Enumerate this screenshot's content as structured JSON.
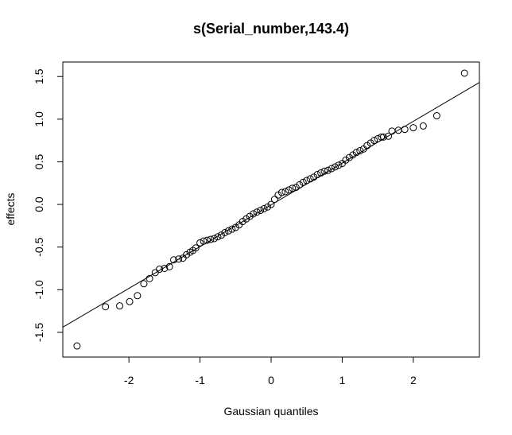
{
  "chart_data": {
    "type": "scatter",
    "title": "s(Serial_number,143.4)",
    "x_label": "Gaussian quantiles",
    "y_label": "effects",
    "xlim": [
      -2.93,
      2.93
    ],
    "ylim": [
      -1.79,
      1.67
    ],
    "xticks": [
      -2,
      -1,
      0,
      1,
      2
    ],
    "yticks": [
      -1.5,
      {
        "value": -1,
        "label": "-1.0"
      },
      -0.5,
      {
        "value": 0,
        "label": "0.0"
      },
      0.5,
      {
        "value": 1,
        "label": "1.0"
      },
      1.5
    ],
    "point_color": "#000000",
    "x": [
      -2.73,
      -2.33,
      -2.13,
      -1.99,
      -1.88,
      -1.79,
      -1.71,
      -1.63,
      -1.57,
      -1.5,
      -1.43,
      -1.37,
      -1.3,
      -1.24,
      -1.19,
      -1.14,
      -1.1,
      -1.06,
      -1.0,
      -0.95,
      -0.9,
      -0.85,
      -0.8,
      -0.75,
      -0.7,
      -0.65,
      -0.6,
      -0.55,
      -0.5,
      -0.45,
      -0.4,
      -0.35,
      -0.3,
      -0.25,
      -0.2,
      -0.15,
      -0.1,
      -0.05,
      0,
      0.05,
      0.1,
      0.15,
      0.2,
      0.25,
      0.3,
      0.35,
      0.4,
      0.45,
      0.5,
      0.55,
      0.6,
      0.65,
      0.7,
      0.75,
      0.8,
      0.85,
      0.9,
      0.95,
      1.0,
      1.05,
      1.1,
      1.15,
      1.2,
      1.25,
      1.3,
      1.35,
      1.4,
      1.45,
      1.5,
      1.55,
      1.58,
      1.65,
      1.7,
      1.79,
      1.88,
      2.0,
      2.14,
      2.33,
      2.72
    ],
    "values": [
      -1.66,
      -1.2,
      -1.19,
      -1.14,
      -1.07,
      -0.93,
      -0.87,
      -0.8,
      -0.76,
      -0.75,
      -0.73,
      -0.65,
      -0.64,
      -0.63,
      -0.59,
      -0.56,
      -0.54,
      -0.51,
      -0.45,
      -0.43,
      -0.42,
      -0.41,
      -0.4,
      -0.38,
      -0.36,
      -0.33,
      -0.31,
      -0.29,
      -0.27,
      -0.24,
      -0.2,
      -0.17,
      -0.14,
      -0.11,
      -0.09,
      -0.07,
      -0.05,
      -0.03,
      0.0,
      0.06,
      0.11,
      0.14,
      0.15,
      0.17,
      0.19,
      0.2,
      0.23,
      0.26,
      0.28,
      0.3,
      0.32,
      0.35,
      0.37,
      0.39,
      0.4,
      0.42,
      0.44,
      0.46,
      0.48,
      0.52,
      0.55,
      0.58,
      0.61,
      0.63,
      0.65,
      0.69,
      0.72,
      0.75,
      0.77,
      0.79,
      0.79,
      0.8,
      0.86,
      0.87,
      0.88,
      0.9,
      0.92,
      1.04,
      1.54
    ],
    "reference_line": {
      "x": [
        -2.93,
        2.93
      ],
      "y": [
        -1.44,
        1.43
      ],
      "color": "#000000"
    }
  }
}
